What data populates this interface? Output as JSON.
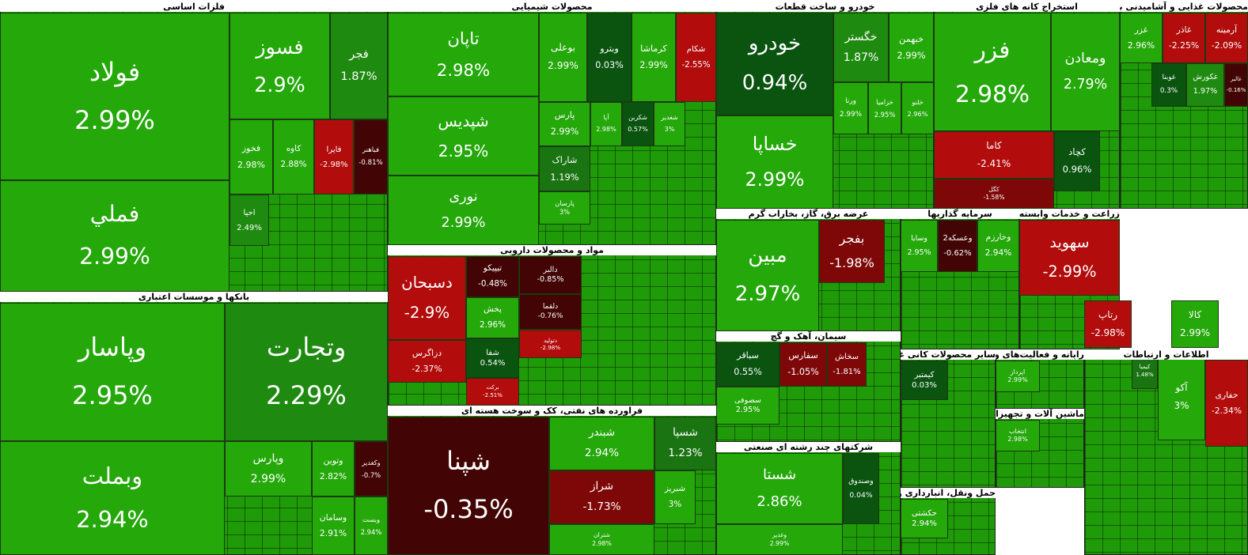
{
  "sectors": [
    {
      "title": "فلزات اساسی",
      "tiles": [
        {
          "name": "فولاد",
          "change": "2.99%"
        },
        {
          "name": "فملي",
          "change": "2.99%"
        },
        {
          "name": "فسوز",
          "change": "2.9%"
        },
        {
          "name": "فجر",
          "change": "1.87%"
        },
        {
          "name": "فخوز",
          "change": "2.98%"
        },
        {
          "name": "کاوه",
          "change": "2.88%"
        },
        {
          "name": "فايرا",
          "change": "-2.98%"
        },
        {
          "name": "فباهنر",
          "change": "-0.81%"
        },
        {
          "name": "احيا",
          "change": "2.49%"
        }
      ]
    },
    {
      "title": "بانکها و موسسات اعتباری",
      "tiles": [
        {
          "name": "وپاسار",
          "change": "2.95%"
        },
        {
          "name": "وتجارت",
          "change": "2.29%"
        },
        {
          "name": "وبملت",
          "change": "2.94%"
        },
        {
          "name": "وپارس",
          "change": "2.99%"
        },
        {
          "name": "وتوین",
          "change": "2.82%"
        },
        {
          "name": "وکغدیر",
          "change": "-0.7%"
        },
        {
          "name": "وسامان",
          "change": "2.91%"
        },
        {
          "name": "وبست",
          "change": "2.94%"
        }
      ]
    },
    {
      "title": "محصولات شیمیایی",
      "tiles": [
        {
          "name": "تاپان",
          "change": "2.98%"
        },
        {
          "name": "شپدیس",
          "change": "2.95%"
        },
        {
          "name": "نوری",
          "change": "2.99%"
        },
        {
          "name": "بوعلی",
          "change": "2.99%"
        },
        {
          "name": "وبترو",
          "change": "0.03%"
        },
        {
          "name": "کرماشا",
          "change": "2.99%"
        },
        {
          "name": "شکام",
          "change": "-2.55%"
        },
        {
          "name": "پارس",
          "change": "2.99%"
        },
        {
          "name": "شاراک",
          "change": "1.19%"
        },
        {
          "name": "پارسان",
          "change": "3%"
        },
        {
          "name": "آپا",
          "change": "2.98%"
        },
        {
          "name": "شکربن",
          "change": "0.57%"
        },
        {
          "name": "شغدیر",
          "change": "3%"
        }
      ]
    },
    {
      "title": "مواد و محصولات دارویی",
      "tiles": [
        {
          "name": "دسبحان",
          "change": "-2.9%"
        },
        {
          "name": "دزاگرس",
          "change": "-2.37%"
        },
        {
          "name": "تیپیکو",
          "change": "-0.48%"
        },
        {
          "name": "پخش",
          "change": "2.96%"
        },
        {
          "name": "شفا",
          "change": "0.54%"
        },
        {
          "name": "دالبر",
          "change": "-0.85%"
        },
        {
          "name": "دلقما",
          "change": "-0.76%"
        },
        {
          "name": "دتولید",
          "change": "-2.98%"
        },
        {
          "name": "برکت",
          "change": "-2.51%"
        }
      ]
    },
    {
      "title": "فراورده های نفتی، کک و سوخت هسته ای",
      "tiles": [
        {
          "name": "شپنا",
          "change": "-0.35%"
        },
        {
          "name": "شبندر",
          "change": "2.94%"
        },
        {
          "name": "شسپا",
          "change": "1.23%"
        },
        {
          "name": "شراز",
          "change": "-1.73%"
        },
        {
          "name": "شبریز",
          "change": "3%"
        },
        {
          "name": "شتران",
          "change": "2.98%"
        }
      ]
    },
    {
      "title": "خودرو و ساخت قطعات",
      "tiles": [
        {
          "name": "خودرو",
          "change": "0.94%"
        },
        {
          "name": "خساپا",
          "change": "2.99%"
        },
        {
          "name": "خگستر",
          "change": "1.87%"
        },
        {
          "name": "خبهمن",
          "change": "2.99%"
        },
        {
          "name": "ورنا",
          "change": "2.99%"
        },
        {
          "name": "خزامیا",
          "change": "2.95%"
        },
        {
          "name": "خلنو",
          "change": "2.96%"
        }
      ]
    },
    {
      "title": "استخراج کانه های فلزی",
      "tiles": [
        {
          "name": "فزر",
          "change": "2.98%"
        },
        {
          "name": "ومعادن",
          "change": "2.79%"
        },
        {
          "name": "کاما",
          "change": "-2.41%"
        },
        {
          "name": "کگل",
          "change": "-1.58%"
        },
        {
          "name": "کچاد",
          "change": "0.96%"
        }
      ]
    },
    {
      "title": "محصولات غذایی و آشامیدنی به جز قند و شکر",
      "tiles": [
        {
          "name": "غزر",
          "change": "2.96%"
        },
        {
          "name": "غاذر",
          "change": "-2.25%"
        },
        {
          "name": "آرمینه",
          "change": "-2.09%"
        },
        {
          "name": "غوبنا",
          "change": "0.3%"
        },
        {
          "name": "غکورش",
          "change": "1.97%"
        },
        {
          "name": "غالبر",
          "change": "-0.16%"
        }
      ]
    },
    {
      "title": "عرضه برق، گاز، بخاراب گرم",
      "tiles": [
        {
          "name": "مبین",
          "change": "2.97%"
        },
        {
          "name": "بفجر",
          "change": "-1.98%"
        }
      ]
    },
    {
      "title": "سرمایه گذاریها",
      "tiles": [
        {
          "name": "وسایا",
          "change": "2.95%"
        },
        {
          "name": "وعسکه2",
          "change": "-0.62%"
        },
        {
          "name": "وخارزم",
          "change": "2.94%"
        }
      ]
    },
    {
      "title": "زراعت و خدمات وابسته",
      "tiles": [
        {
          "name": "سهوید",
          "change": "-2.99%"
        }
      ]
    },
    {
      "title": "سیمان، آهک و گچ",
      "tiles": [
        {
          "name": "سباقر",
          "change": "0.55%"
        },
        {
          "name": "سفارس",
          "change": "-1.05%"
        },
        {
          "name": "سخاش",
          "change": "-1.81%"
        },
        {
          "name": "سصوفی",
          "change": "2.95%"
        }
      ]
    },
    {
      "title": "شرکتهای چند رشته ای صنعتی",
      "tiles": [
        {
          "name": "شستا",
          "change": "2.86%"
        },
        {
          "name": "وصندوق",
          "change": "0.04%"
        },
        {
          "name": "وغدیر",
          "change": "2.99%"
        }
      ]
    },
    {
      "title": "سایر محصولات کانی غیرفلزی",
      "tiles": [
        {
          "name": "کیمتبر",
          "change": "0.03%"
        }
      ]
    },
    {
      "title": "رایانه و فعالیت‌های وابسته به آن",
      "tiles": [
        {
          "name": "اپرداز",
          "change": "2.99%"
        }
      ]
    },
    {
      "title": "ماشین آلات و تجهیزات",
      "tiles": [
        {
          "name": "انتخاب",
          "change": "2.98%"
        }
      ]
    },
    {
      "title": "حمل ونقل، انبارداری و ارتباطات",
      "tiles": [
        {
          "name": "حکشتی",
          "change": "2.94%"
        }
      ]
    },
    {
      "title": "اطلاعات و ارتباطات",
      "tiles": [
        {
          "name": "کالا",
          "change": "2.99%"
        },
        {
          "name": "آکو",
          "change": "3%"
        },
        {
          "name": "حفاری",
          "change": "-2.34%"
        },
        {
          "name": "رتاپ",
          "change": "-2.98%"
        },
        {
          "name": "کیمیا",
          "change": "1.48%"
        }
      ]
    }
  ]
}
